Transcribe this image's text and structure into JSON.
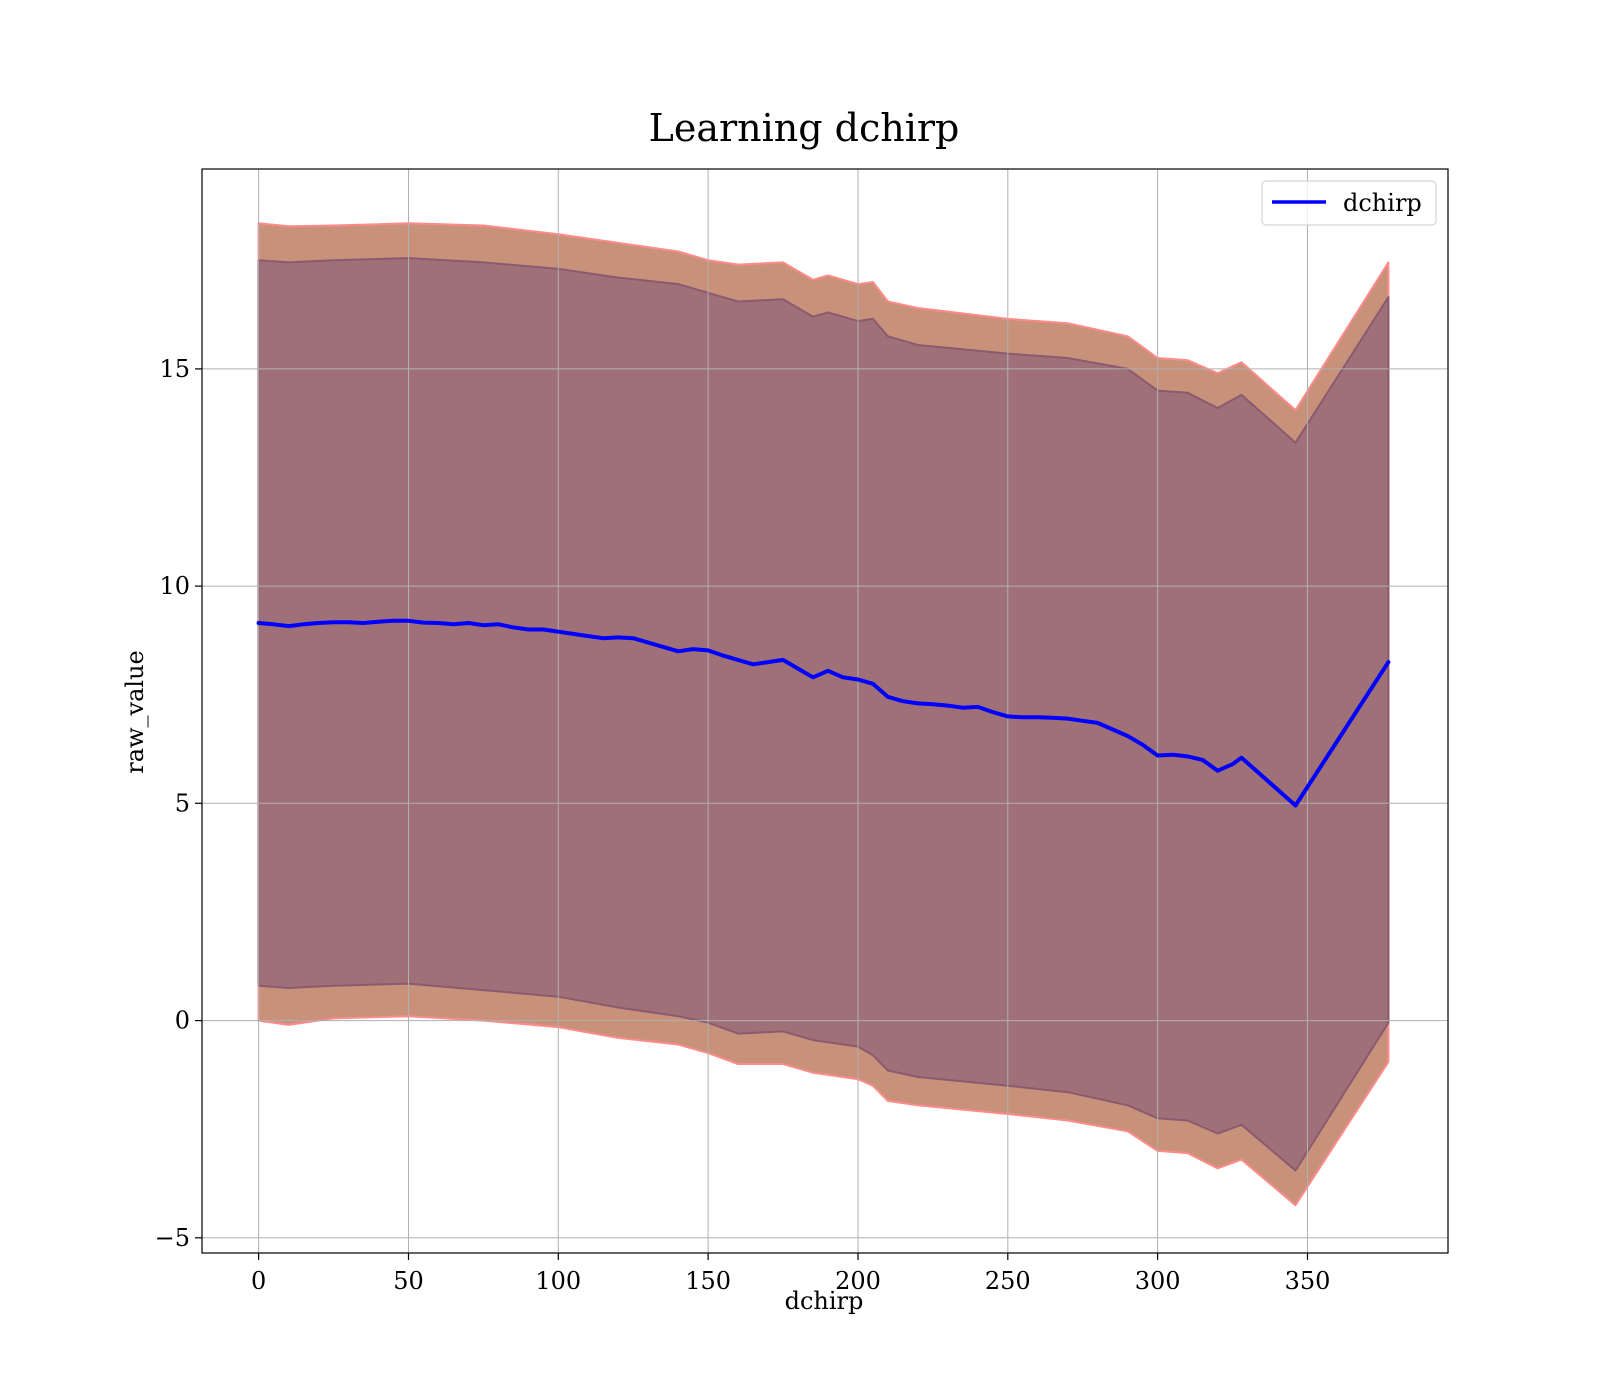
{
  "chart_data": {
    "type": "line",
    "title": "Learning dchirp",
    "xlabel": "dchirp",
    "ylabel": "raw_value",
    "xlim": [
      -18.9,
      396.9
    ],
    "ylim": [
      -5.35,
      19.6
    ],
    "xticks": [
      0,
      50,
      100,
      150,
      200,
      250,
      300,
      350
    ],
    "yticks": [
      -5,
      0,
      5,
      10,
      15
    ],
    "ytick_labels": [
      "−5",
      "0",
      "5",
      "10",
      "15"
    ],
    "grid": true,
    "legend_position": "top-right",
    "colors": {
      "mean_line": "#0000ff",
      "outer_band": "#c8917a",
      "outer_band_edge": "#ff8a8a",
      "inner_band": "#a07079",
      "inner_band_edge": "#8a5a70"
    },
    "series": [
      {
        "name": "dchirp",
        "kind": "line",
        "x": [
          0,
          5,
          10,
          15,
          20,
          25,
          30,
          35,
          40,
          45,
          50,
          55,
          60,
          65,
          70,
          75,
          80,
          85,
          90,
          95,
          100,
          105,
          110,
          115,
          120,
          125,
          130,
          135,
          140,
          145,
          150,
          155,
          160,
          165,
          170,
          175,
          180,
          185,
          190,
          195,
          200,
          205,
          210,
          215,
          220,
          225,
          230,
          235,
          240,
          245,
          250,
          255,
          260,
          265,
          270,
          275,
          280,
          285,
          290,
          295,
          300,
          305,
          310,
          315,
          320,
          325,
          328,
          346,
          377
        ],
        "y": [
          9.15,
          9.12,
          9.08,
          9.12,
          9.15,
          9.17,
          9.17,
          9.15,
          9.18,
          9.2,
          9.2,
          9.16,
          9.15,
          9.12,
          9.15,
          9.1,
          9.12,
          9.05,
          9.0,
          9.0,
          8.95,
          8.9,
          8.85,
          8.8,
          8.82,
          8.8,
          8.7,
          8.6,
          8.5,
          8.55,
          8.52,
          8.4,
          8.3,
          8.2,
          8.25,
          8.3,
          8.1,
          7.9,
          8.05,
          7.9,
          7.85,
          7.75,
          7.45,
          7.35,
          7.3,
          7.28,
          7.25,
          7.2,
          7.22,
          7.1,
          7.0,
          6.98,
          6.98,
          6.97,
          6.95,
          6.9,
          6.85,
          6.7,
          6.55,
          6.35,
          6.1,
          6.12,
          6.08,
          6.0,
          5.75,
          5.9,
          6.05,
          4.95,
          8.25
        ]
      },
      {
        "kind": "band",
        "x": [
          0,
          10,
          25,
          50,
          75,
          100,
          120,
          140,
          150,
          160,
          175,
          185,
          190,
          200,
          205,
          210,
          220,
          250,
          270,
          290,
          300,
          310,
          320,
          328,
          346,
          377
        ],
        "lower": [
          0.0,
          -0.1,
          0.05,
          0.1,
          0.0,
          -0.15,
          -0.4,
          -0.55,
          -0.75,
          -1.0,
          -1.0,
          -1.2,
          -1.25,
          -1.35,
          -1.5,
          -1.85,
          -1.95,
          -2.15,
          -2.3,
          -2.55,
          -3.0,
          -3.05,
          -3.4,
          -3.2,
          -4.25,
          -0.95
        ],
        "upper": [
          18.35,
          18.28,
          18.3,
          18.35,
          18.3,
          18.1,
          17.9,
          17.7,
          17.5,
          17.4,
          17.45,
          17.05,
          17.15,
          16.95,
          17.0,
          16.55,
          16.4,
          16.15,
          16.05,
          15.75,
          15.25,
          15.2,
          14.9,
          15.15,
          14.05,
          17.45
        ]
      },
      {
        "kind": "band",
        "x": [
          0,
          10,
          25,
          50,
          75,
          100,
          120,
          140,
          150,
          160,
          175,
          185,
          190,
          200,
          205,
          210,
          220,
          250,
          270,
          290,
          300,
          310,
          320,
          328,
          346,
          377
        ],
        "lower": [
          0.8,
          0.75,
          0.8,
          0.85,
          0.7,
          0.55,
          0.3,
          0.1,
          -0.05,
          -0.3,
          -0.25,
          -0.45,
          -0.5,
          -0.6,
          -0.8,
          -1.15,
          -1.3,
          -1.5,
          -1.65,
          -1.95,
          -2.25,
          -2.3,
          -2.6,
          -2.4,
          -3.45,
          -0.05
        ],
        "upper": [
          17.5,
          17.45,
          17.5,
          17.55,
          17.45,
          17.3,
          17.1,
          16.95,
          16.75,
          16.55,
          16.6,
          16.2,
          16.3,
          16.1,
          16.15,
          15.75,
          15.55,
          15.35,
          15.25,
          15.0,
          14.5,
          14.45,
          14.1,
          14.4,
          13.3,
          16.65
        ]
      }
    ]
  }
}
